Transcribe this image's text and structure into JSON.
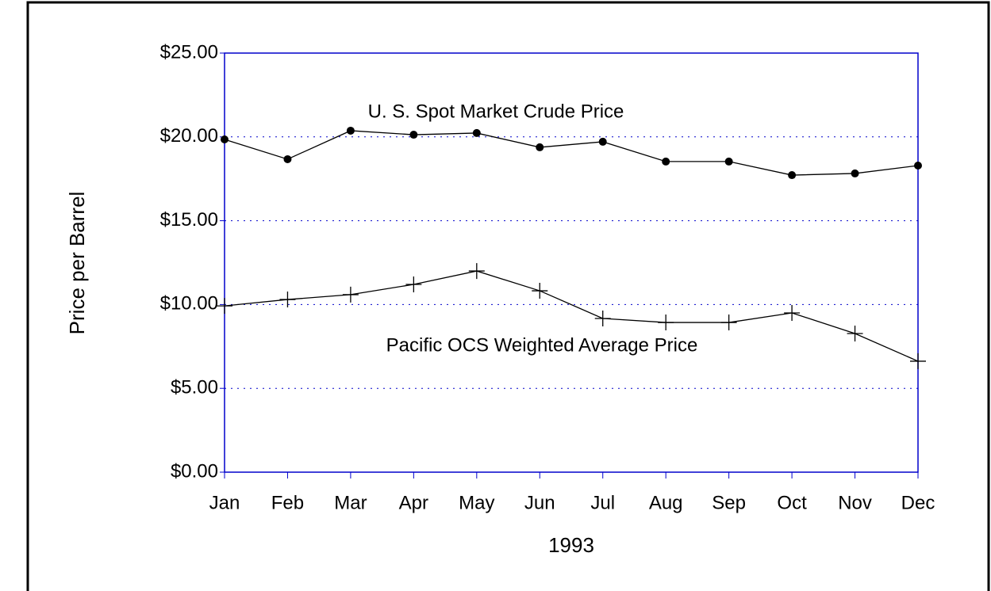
{
  "chart_data": {
    "type": "line",
    "x_label": "1993",
    "y_label": "Price per Barrel",
    "categories": [
      "Jan",
      "Feb",
      "Mar",
      "Apr",
      "May",
      "Jun",
      "Jul",
      "Aug",
      "Sep",
      "Oct",
      "Nov",
      "Dec"
    ],
    "series": [
      {
        "name": "U. S. Spot Market Crude Price",
        "color": "#000000",
        "marker": "circle",
        "values": [
          19.85,
          18.67,
          20.37,
          20.13,
          20.23,
          19.38,
          19.71,
          18.53,
          18.53,
          17.72,
          17.82,
          18.29
        ]
      },
      {
        "name": "Pacific OCS Weighted Average Price",
        "color": "#000000",
        "marker": "plus",
        "values": [
          9.92,
          10.3,
          10.59,
          11.2,
          12.0,
          10.82,
          9.17,
          8.93,
          8.93,
          9.5,
          8.27,
          6.62
        ]
      }
    ],
    "ylim": [
      0,
      25
    ],
    "yticks": [
      {
        "value": 0,
        "label": "$0.00"
      },
      {
        "value": 5,
        "label": "$5.00"
      },
      {
        "value": 10,
        "label": "$10.00"
      },
      {
        "value": 15,
        "label": "$15.00"
      },
      {
        "value": 20,
        "label": "$20.00"
      },
      {
        "value": 25,
        "label": "$25.00"
      }
    ],
    "grid": true,
    "grid_color": "#0000cc",
    "axis_color": "#0000cc"
  }
}
